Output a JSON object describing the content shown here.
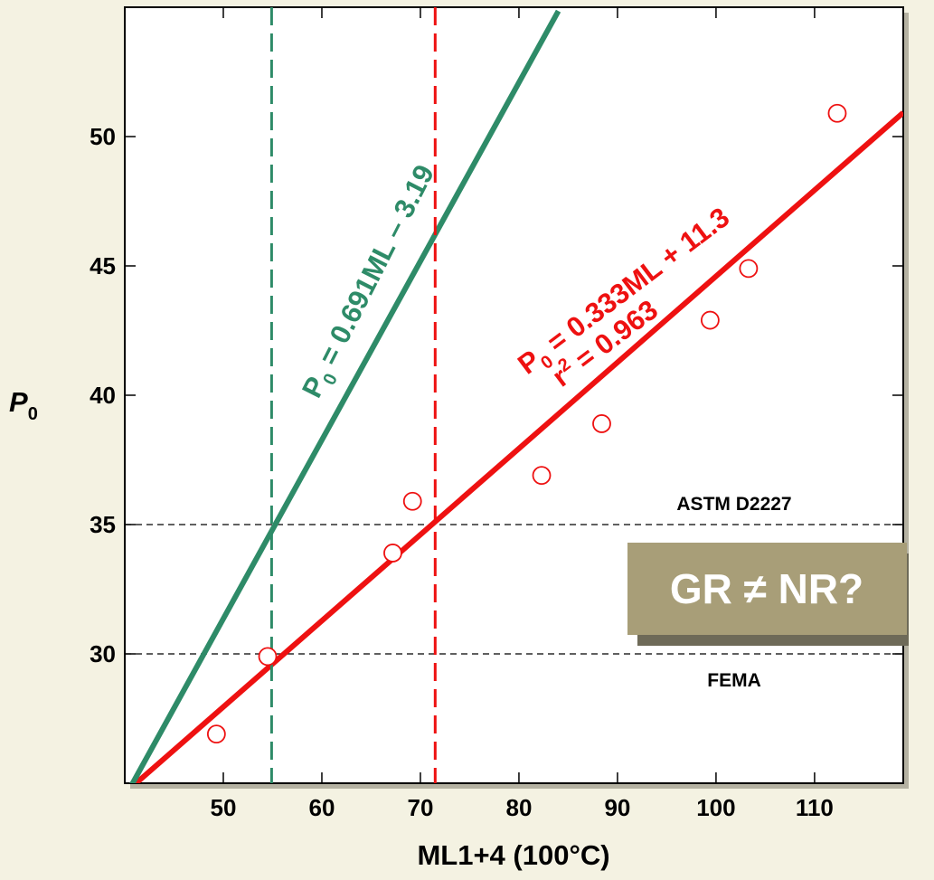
{
  "chart_data": {
    "type": "scatter",
    "xlabel": "ML1+4 (100°C)",
    "ylabel_main": "P",
    "ylabel_sub": "0",
    "xlim": [
      40,
      119
    ],
    "ylim": [
      25,
      55
    ],
    "xticks": [
      50,
      60,
      70,
      80,
      90,
      100,
      110
    ],
    "yticks": [
      30,
      35,
      40,
      45,
      50
    ],
    "grid": false,
    "colors": {
      "red": "#ee1111",
      "green": "#2e8b68",
      "callout_bg": "#a89e78",
      "callout_shadow": "#6e6a58"
    },
    "series": [
      {
        "points": [
          {
            "x": 49.3,
            "y": 26.9
          },
          {
            "x": 54.5,
            "y": 29.9
          },
          {
            "x": 67.2,
            "y": 33.9
          },
          {
            "x": 69.2,
            "y": 35.9
          },
          {
            "x": 82.3,
            "y": 36.9
          },
          {
            "x": 88.4,
            "y": 38.9
          },
          {
            "x": 99.4,
            "y": 42.9
          },
          {
            "x": 103.3,
            "y": 44.9
          },
          {
            "x": 112.3,
            "y": 50.9
          }
        ]
      }
    ],
    "fit_lines": [
      {
        "color": "red",
        "slope": 0.333,
        "intercept": 11.3,
        "x_range": [
          41,
          119
        ],
        "eq_main": "P",
        "eq_sub": "0",
        "eq_rest": " = 0.333ML + 11.3",
        "r2_main": "r",
        "r2_sup": "2",
        "r2_rest": " = 0.963"
      },
      {
        "color": "green",
        "slope": 0.691,
        "intercept": -3.19,
        "x_range": [
          40.3,
          84
        ],
        "eq_main": "P",
        "eq_sub": "0",
        "eq_rest": " = 0.691ML – 3.19"
      }
    ],
    "vertical_refs": [
      {
        "x": 54.9,
        "color": "green"
      },
      {
        "x": 71.5,
        "color": "red"
      }
    ],
    "horizontal_refs": [
      {
        "y": 35,
        "label": "ASTM D2227"
      },
      {
        "y": 30,
        "label": "FEMA"
      }
    ],
    "callout": "GR ≠ NR?"
  }
}
